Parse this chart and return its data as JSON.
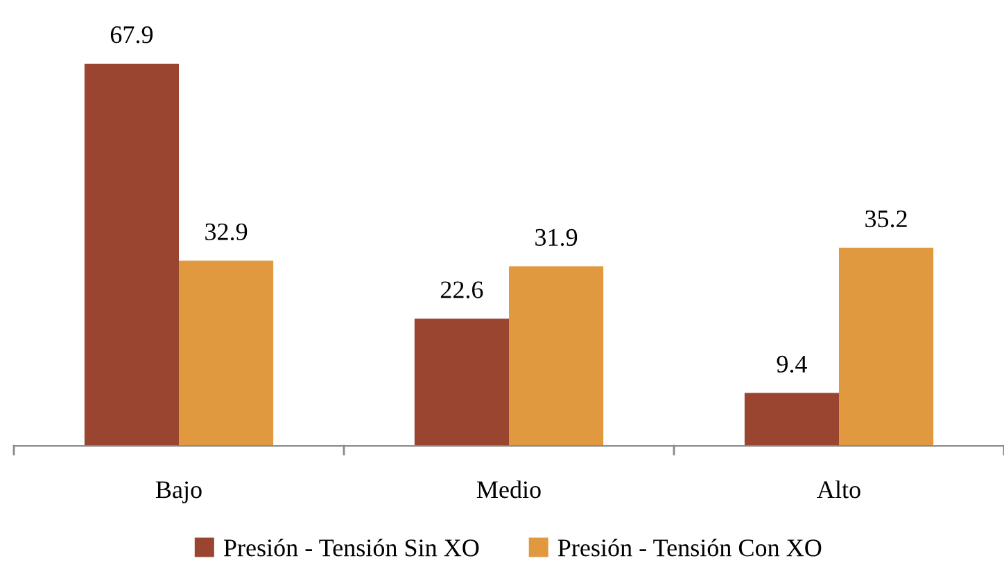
{
  "chart_data": {
    "type": "bar",
    "categories": [
      "Bajo",
      "Medio",
      "Alto"
    ],
    "series": [
      {
        "name": "Presión - Tensión Sin XO",
        "color": "#9a4530",
        "values": [
          67.9,
          22.6,
          9.4
        ]
      },
      {
        "name": "Presión - Tensión Con XO",
        "color": "#e0993e",
        "values": [
          32.9,
          31.9,
          35.2
        ]
      }
    ],
    "data_labels": true,
    "legend": "bottom",
    "grid": false
  }
}
